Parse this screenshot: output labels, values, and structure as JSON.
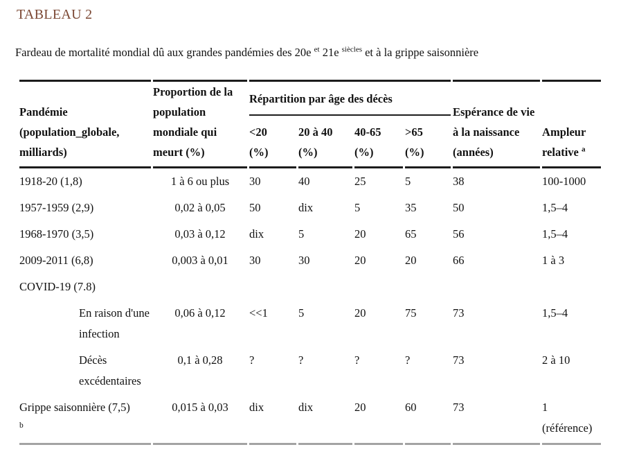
{
  "page": {
    "title": "TABLEAU 2",
    "caption": {
      "text1": "Fardeau de mortalité mondial dû aux grandes pandémies des 20e",
      "sup1": "et",
      "text2": "21e",
      "sup2": "siècles",
      "text3": "et à la grippe saisonnière"
    }
  },
  "table": {
    "header": {
      "pandemie": "Pandémie (population_globale, milliards)",
      "proportion": "Proportion de la population mondiale qui meurt (%)",
      "repartition_group": "Répartition par âge des décès",
      "age_columns": [
        {
          "label": "<20",
          "unit": "(%)"
        },
        {
          "label": "20 à 40",
          "unit": "(%)"
        },
        {
          "label": "40-65",
          "unit": "(%)"
        },
        {
          "label": ">65",
          "unit": "(%)"
        }
      ],
      "esperance": "Espérance de vie à la naissance (années)",
      "ampleur": "Ampleur relative",
      "ampleur_footnote": "a"
    },
    "rows": [
      {
        "name": "1918-20 (1,8)",
        "name_footnote": "",
        "proportion": "1 à 6 ou plus",
        "age_under20": "30",
        "age_20_40": "40",
        "age_40_65": "25",
        "age_over65": "5",
        "esperance": "38",
        "ampleur": "100-1000",
        "ampleur_note": ""
      },
      {
        "name": "1957-1959 (2,9)",
        "name_footnote": "",
        "proportion": "0,02 à 0,05",
        "age_under20": "50",
        "age_20_40": "dix",
        "age_40_65": "5",
        "age_over65": "35",
        "esperance": "50",
        "ampleur": "1,5–4",
        "ampleur_note": ""
      },
      {
        "name": "1968-1970 (3,5)",
        "name_footnote": "",
        "proportion": "0,03 à 0,12",
        "age_under20": "dix",
        "age_20_40": "5",
        "age_40_65": "20",
        "age_over65": "65",
        "esperance": "56",
        "ampleur": "1,5–4",
        "ampleur_note": ""
      },
      {
        "name": "2009-2011 (6,8)",
        "name_footnote": "",
        "proportion": "0,003 à 0,01",
        "age_under20": "30",
        "age_20_40": "30",
        "age_40_65": "20",
        "age_over65": "20",
        "esperance": "66",
        "ampleur": "1 à 3",
        "ampleur_note": ""
      },
      {
        "name": "COVID-19 (7.8)",
        "name_footnote": "",
        "proportion": "",
        "age_under20": "",
        "age_20_40": "",
        "age_40_65": "",
        "age_over65": "",
        "esperance": "",
        "ampleur": "",
        "ampleur_note": ""
      },
      {
        "name": "En raison d'une infection",
        "name_footnote": "",
        "proportion": "0,06 à 0,12",
        "age_under20": "<<1",
        "age_20_40": "5",
        "age_40_65": "20",
        "age_over65": "75",
        "esperance": "73",
        "ampleur": "1,5–4",
        "ampleur_note": ""
      },
      {
        "name": "Décès excédentaires",
        "name_footnote": "",
        "proportion": "0,1 à 0,28",
        "age_under20": "?",
        "age_20_40": "?",
        "age_40_65": "?",
        "age_over65": "?",
        "esperance": "73",
        "ampleur": "2 à 10",
        "ampleur_note": ""
      },
      {
        "name": "Grippe saisonnière (7,5)",
        "name_footnote": "b",
        "proportion": "0,015 à 0,03",
        "age_under20": "dix",
        "age_20_40": "dix",
        "age_40_65": "20",
        "age_over65": "60",
        "esperance": "73",
        "ampleur": "1",
        "ampleur_note": "(référence)"
      }
    ]
  }
}
